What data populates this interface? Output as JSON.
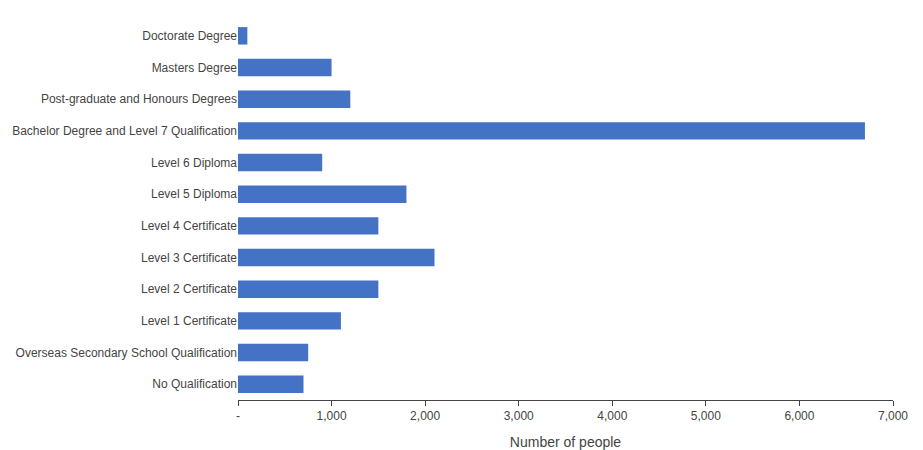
{
  "chart_data": {
    "type": "bar",
    "orientation": "horizontal",
    "categories": [
      "No Qualification",
      "Overseas Secondary School Qualification",
      "Level 1 Certificate",
      "Level 2 Certificate",
      "Level 3 Certificate",
      "Level 4 Certificate",
      "Level 5 Diploma",
      "Level 6 Diploma",
      "Bachelor Degree and Level 7 Qualification",
      "Post-graduate and Honours Degrees",
      "Masters Degree",
      "Doctorate Degree"
    ],
    "values": [
      700,
      750,
      1100,
      1500,
      2100,
      1500,
      1800,
      900,
      6700,
      1200,
      1000,
      100
    ],
    "color": "#4472C4",
    "xlabel": "Number of people",
    "xlim": [
      0,
      7000
    ],
    "xticks": [
      {
        "value": 0,
        "label": "-"
      },
      {
        "value": 1000,
        "label": "1,000"
      },
      {
        "value": 2000,
        "label": "2,000"
      },
      {
        "value": 3000,
        "label": "3,000"
      },
      {
        "value": 4000,
        "label": "4,000"
      },
      {
        "value": 5000,
        "label": "5,000"
      },
      {
        "value": 6000,
        "label": "6,000"
      },
      {
        "value": 7000,
        "label": "7,000"
      }
    ],
    "grid": false
  }
}
